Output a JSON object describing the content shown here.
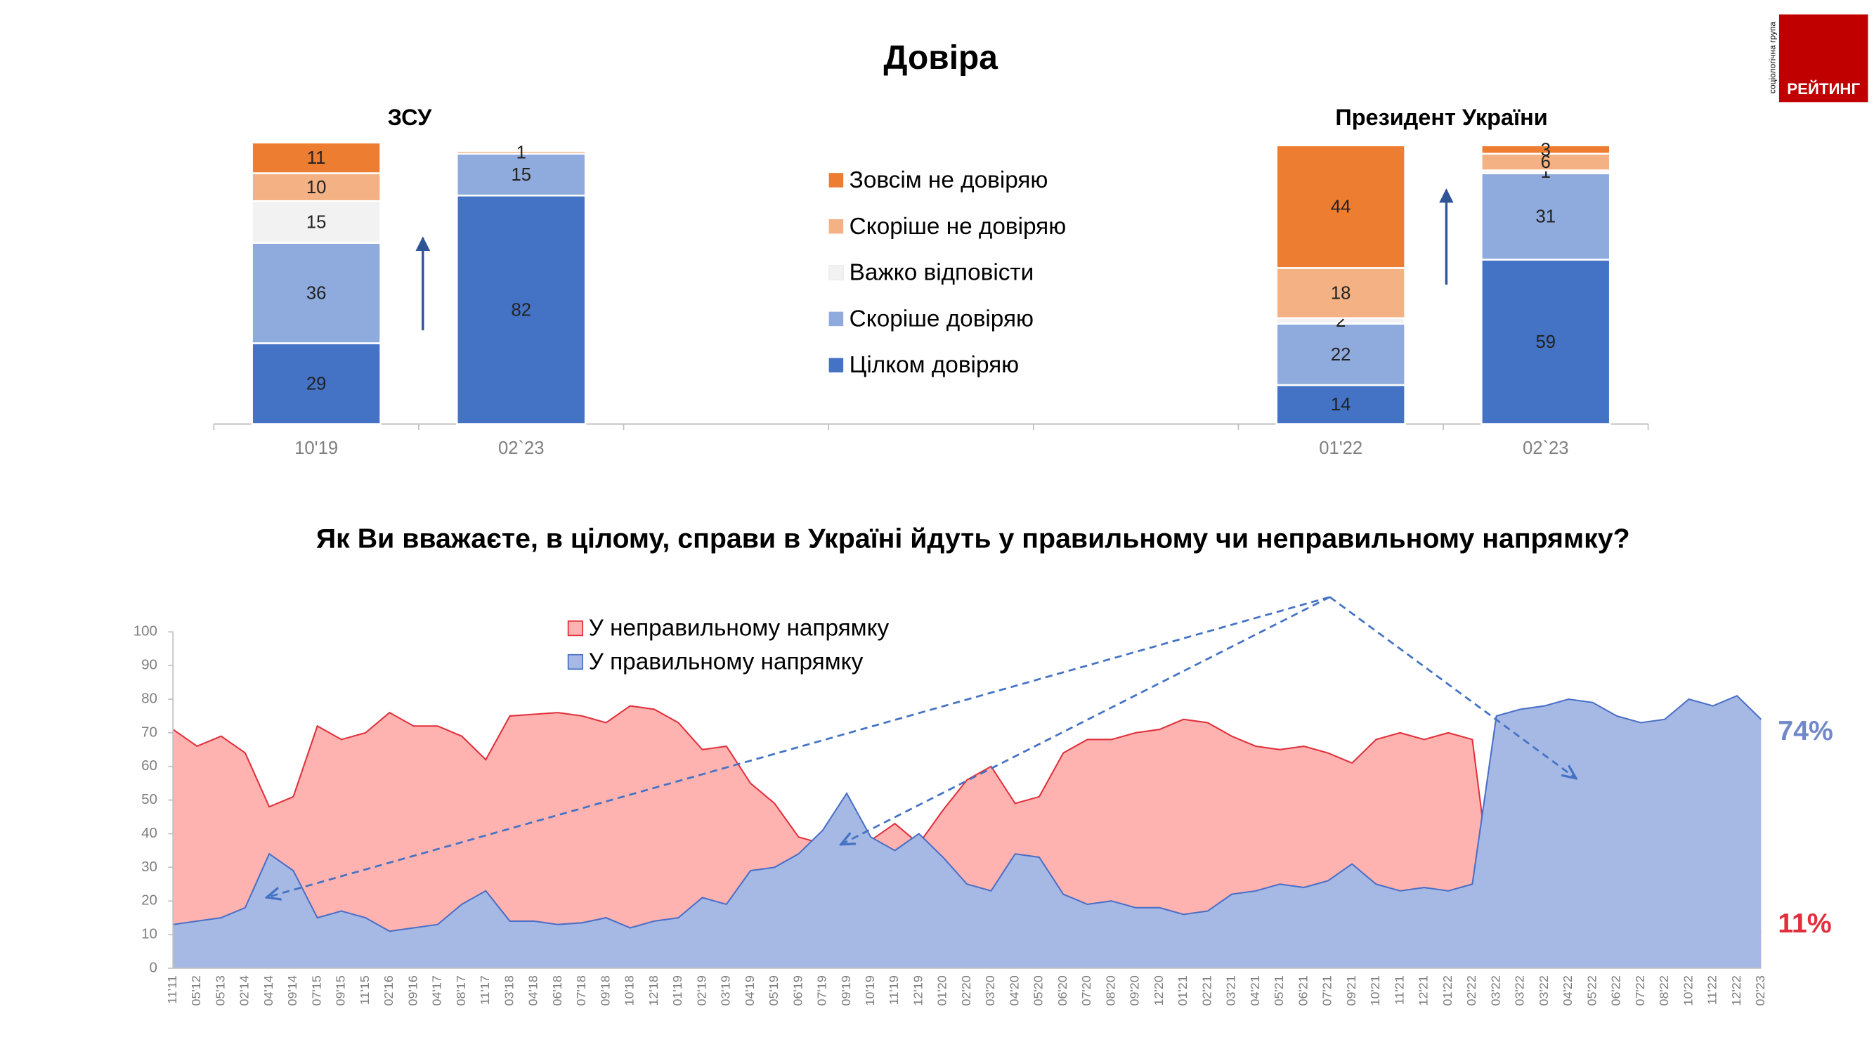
{
  "logo": {
    "name": "РЕЙТИНГ",
    "tagline": "соціологічна група"
  },
  "chart_data": [
    {
      "type": "bar",
      "stacked": true,
      "title": "Довіра",
      "group_labels": [
        "ЗСУ",
        "Президент України"
      ],
      "categories": [
        "10'19",
        "02`23",
        null,
        null,
        null,
        "01'22",
        "02`23"
      ],
      "ylim": [
        0,
        100
      ],
      "series": [
        {
          "name": "Цілком довіряю",
          "color": "#4472c4",
          "values": [
            29,
            82,
            null,
            null,
            null,
            14,
            59
          ]
        },
        {
          "name": "Скоріше довіряю",
          "color": "#8faadc",
          "values": [
            36,
            15,
            null,
            null,
            null,
            22,
            31
          ]
        },
        {
          "name": "Важко відповісти",
          "color": "#f2f2f2",
          "values": [
            15,
            null,
            null,
            null,
            null,
            2,
            1
          ]
        },
        {
          "name": "Скоріше не довіряю",
          "color": "#f4b183",
          "values": [
            10,
            1,
            null,
            null,
            null,
            18,
            6
          ]
        },
        {
          "name": "Зовсім не довіряю",
          "color": "#ed7d31",
          "values": [
            11,
            null,
            null,
            null,
            null,
            44,
            3
          ]
        }
      ]
    },
    {
      "type": "area",
      "title": "Як Ви вважаєте, в цілому, справи в Україні йдуть у правильному чи неправильному напрямку?",
      "categories": [
        "11'11",
        "05'12",
        "05'13",
        "02'14",
        "04'14",
        "09'14",
        "07'15",
        "09'15",
        "11'15",
        "02'16",
        "09'16",
        "04'17",
        "08'17",
        "11'17",
        "03'18",
        "04'18",
        "06'18",
        "07'18",
        "09'18",
        "10'18",
        "12'18",
        "01'19",
        "02'19",
        "03'19",
        "04'19",
        "05'19",
        "06'19",
        "07'19",
        "09'19",
        "10'19",
        "11'19",
        "12'19",
        "01'20",
        "02'20",
        "03'20",
        "04'20",
        "05'20",
        "06'20",
        "07'20",
        "08'20",
        "09'20",
        "12'20",
        "01'21",
        "02'21",
        "03'21",
        "04'21",
        "05'21",
        "06'21",
        "07'21",
        "09'21",
        "10'21",
        "11'21",
        "12'21",
        "01'22",
        "02'22",
        "03'22",
        "03'22",
        "03'22",
        "04'22",
        "05'22",
        "06'22",
        "07'22",
        "08'22",
        "10'22",
        "11'22",
        "12'22",
        "02'23"
      ],
      "ylim": [
        0,
        100
      ],
      "yticks": [
        0,
        10,
        20,
        30,
        40,
        50,
        60,
        70,
        80,
        90,
        100
      ],
      "series": [
        {
          "name": "У неправильному напрямку",
          "color": "#ffb3b0",
          "line_color": "#e0303c",
          "values": [
            71,
            66,
            69,
            64,
            48,
            51,
            72,
            68,
            70,
            76,
            72,
            72,
            69,
            62,
            75,
            75.5,
            76,
            75,
            73,
            78,
            77,
            73,
            65,
            66,
            55,
            49,
            39,
            37,
            35,
            38,
            43,
            37,
            47,
            56,
            60,
            49,
            51,
            64,
            68,
            68,
            70,
            71,
            74,
            73,
            69,
            66,
            65,
            66,
            64,
            61,
            68,
            70,
            68,
            70,
            68,
            12,
            11,
            10,
            9,
            9,
            9,
            10,
            10,
            9,
            8,
            9,
            11
          ],
          "value_labels": [
            null,
            null,
            null,
            null,
            null,
            null,
            null,
            null,
            null,
            null,
            null,
            null,
            null,
            null,
            null,
            null,
            null,
            null,
            null,
            null,
            null,
            null,
            null,
            null,
            null,
            null,
            null,
            null,
            null,
            null,
            null,
            null,
            null,
            null,
            null,
            null,
            null,
            null,
            null,
            null,
            null,
            null,
            null,
            null,
            null,
            null,
            null,
            null,
            null,
            null,
            null,
            null,
            null,
            null,
            null,
            null,
            null,
            null,
            null,
            null,
            null,
            null,
            null,
            null,
            null,
            null,
            "11%"
          ]
        },
        {
          "name": "У правильному напрямку",
          "color": "#a6b9e4",
          "line_color": "#4a6fc7",
          "values": [
            13,
            14,
            15,
            18,
            34,
            29,
            15,
            17,
            15,
            11,
            12,
            13,
            19,
            23,
            14,
            14,
            13,
            13.5,
            15,
            12,
            14,
            15,
            21,
            19,
            29,
            30,
            34,
            41,
            52,
            39,
            35,
            40,
            33,
            25,
            23,
            34,
            33,
            22,
            19,
            20,
            18,
            18,
            16,
            17,
            22,
            23,
            25,
            24,
            26,
            31,
            25,
            23,
            24,
            23,
            25,
            75,
            77,
            78,
            80,
            79,
            75,
            73,
            74,
            80,
            78,
            81,
            74
          ],
          "value_labels": [
            null,
            null,
            null,
            null,
            null,
            null,
            null,
            null,
            null,
            null,
            null,
            null,
            null,
            null,
            null,
            null,
            null,
            null,
            null,
            null,
            null,
            null,
            null,
            null,
            null,
            null,
            null,
            null,
            null,
            null,
            null,
            null,
            null,
            null,
            null,
            null,
            null,
            null,
            null,
            null,
            null,
            null,
            null,
            null,
            null,
            null,
            null,
            null,
            null,
            null,
            null,
            null,
            null,
            null,
            null,
            null,
            null,
            null,
            null,
            null,
            null,
            null,
            null,
            null,
            null,
            null,
            "74%"
          ]
        }
      ]
    }
  ]
}
